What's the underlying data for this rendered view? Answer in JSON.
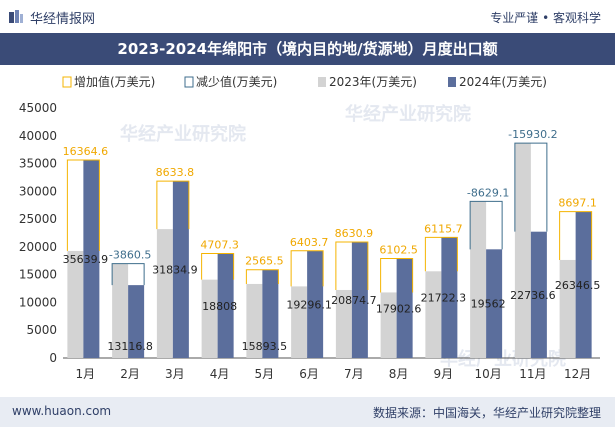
{
  "header": {
    "brand": "华经情报网",
    "tagline": "专业严谨 • 客观科学",
    "title": "2023-2024年绵阳市（境内目的地/货源地）月度出口额"
  },
  "footer": {
    "site": "www.huaon.com",
    "source": "数据来源：中国海关，华经产业研究院整理"
  },
  "watermark": "华经产业研究院",
  "colors": {
    "bar2023": "#d3d3d3",
    "bar2024": "#5b6e9c",
    "increase": "#f5b400",
    "decrease": "#3f6e8c",
    "titlebar": "#3a4b77"
  },
  "chart_data": {
    "type": "bar",
    "categories": [
      "1月",
      "2月",
      "3月",
      "4月",
      "5月",
      "6月",
      "7月",
      "8月",
      "9月",
      "10月",
      "11月",
      "12月"
    ],
    "series": [
      {
        "name": "2023年(万美元)",
        "values": [
          19275.3,
          16977.3,
          23201.1,
          14100.7,
          13328.0,
          12892.4,
          12243.8,
          11800.5,
          15606.6,
          28191.1,
          38666.8,
          17649.4
        ]
      },
      {
        "name": "2024年(万美元)",
        "values": [
          35639.9,
          13116.8,
          31834.9,
          18808,
          15893.5,
          19296.1,
          20874.7,
          17902.6,
          21722.3,
          19562,
          22736.6,
          26346.5
        ]
      }
    ],
    "changes": [
      16364.6,
      -3860.5,
      8633.8,
      4707.3,
      2565.5,
      6403.7,
      8630.9,
      6102.5,
      6115.7,
      -8629.1,
      -15930.2,
      8697.1
    ],
    "legend": [
      "增加值(万美元)",
      "减少值(万美元)",
      "2023年(万美元)",
      "2024年(万美元)"
    ],
    "legend_position": "top-left",
    "ylim": [
      0,
      45000
    ],
    "yticks": [
      0,
      5000,
      10000,
      15000,
      20000,
      25000,
      30000,
      35000,
      40000,
      45000
    ],
    "grid": false
  }
}
